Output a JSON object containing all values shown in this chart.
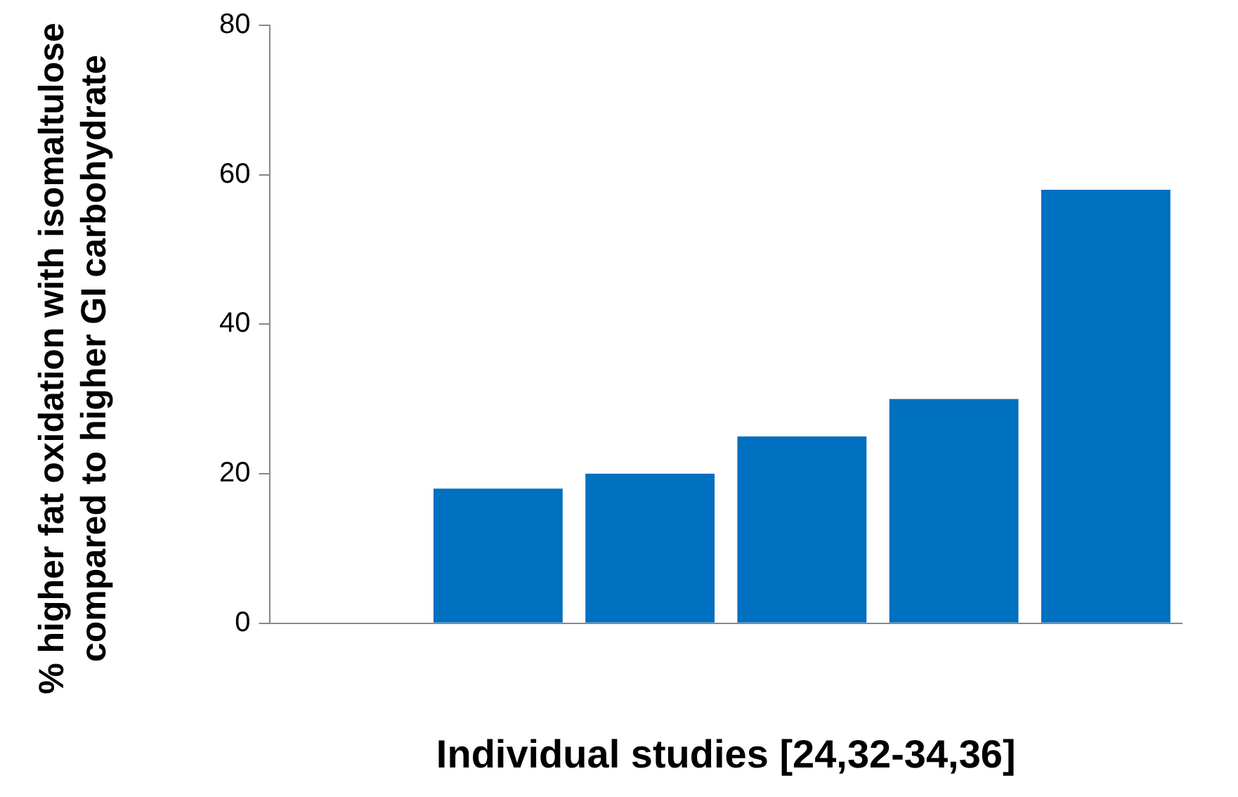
{
  "chart_data": {
    "type": "bar",
    "ylabel": "% higher fat oxidation with isomaltulose compared to higher GI carbohydrate",
    "xlabel": "Individual studies [24,32-34,36]",
    "categories": [
      null,
      null,
      null,
      null,
      null,
      null
    ],
    "values": [
      null,
      18,
      20,
      25,
      30,
      58
    ],
    "color": "#0070c0",
    "ylim": [
      0,
      80
    ],
    "yticks": [
      0,
      20,
      40,
      60,
      80
    ],
    "grid": false,
    "legend": false
  }
}
